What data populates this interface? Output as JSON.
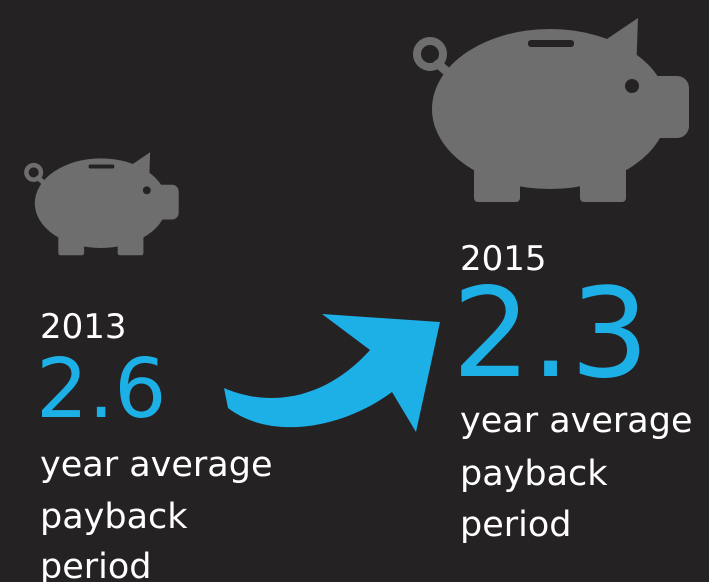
{
  "panels": [
    {
      "year": "2013",
      "value": "2.6",
      "description": [
        "year average",
        "payback",
        "period"
      ]
    },
    {
      "year": "2015",
      "value": "2.3",
      "description": [
        "year average",
        "payback",
        "period"
      ]
    }
  ]
}
